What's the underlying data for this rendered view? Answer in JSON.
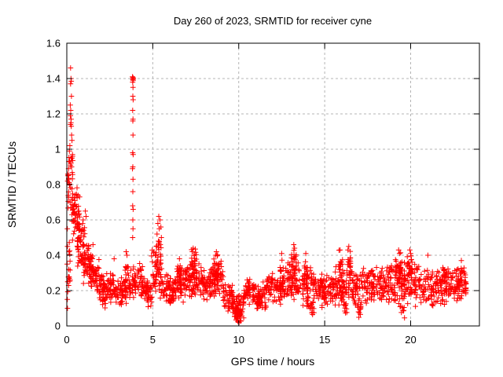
{
  "chart_data": {
    "type": "scatter",
    "title": "Day 260 of 2023, SRMTID for receiver cyne",
    "xlabel": "GPS time / hours",
    "ylabel": "SRMTID / TECUs",
    "xlim": [
      0,
      24
    ],
    "ylim": [
      0,
      1.6
    ],
    "xticks": [
      0,
      5,
      10,
      15,
      20
    ],
    "yticks": [
      0,
      0.2,
      0.4,
      0.6,
      0.8,
      1,
      1.2,
      1.4,
      1.6
    ],
    "grid": true,
    "legend": null,
    "marker_shape": "plus",
    "marker_color": "#ff0000",
    "grid_color": "#b4b4b4",
    "axis_color": "#000000",
    "background_color": "#ffffff",
    "series_count": 1,
    "x_data_end": 23.25,
    "feature_points": [
      [
        0.22,
        1.46
      ],
      [
        0.24,
        1.4
      ],
      [
        0.26,
        1.385
      ],
      [
        0.22,
        1.37
      ],
      [
        0.27,
        1.3
      ],
      [
        0.2,
        1.25
      ],
      [
        0.23,
        1.22
      ],
      [
        0.21,
        1.19
      ],
      [
        0.25,
        1.17
      ],
      [
        0.24,
        1.15
      ],
      [
        0.22,
        1.14
      ],
      [
        0.26,
        1.13
      ],
      [
        0.28,
        1.08
      ],
      [
        0.3,
        1.05
      ],
      [
        0.18,
        1.02
      ],
      [
        0.15,
        0.99
      ],
      [
        0.33,
        0.97
      ],
      [
        0.3,
        0.95
      ],
      [
        0.12,
        0.93
      ],
      [
        0.22,
        0.91
      ],
      [
        0.28,
        0.9
      ],
      [
        0.1,
        0.89
      ],
      [
        0.07,
        0.85
      ],
      [
        0.1,
        0.83
      ],
      [
        0.05,
        0.82
      ],
      [
        3.82,
        1.41
      ],
      [
        3.85,
        1.405
      ],
      [
        3.87,
        1.4
      ],
      [
        3.84,
        1.395
      ],
      [
        3.86,
        1.39
      ],
      [
        3.83,
        1.38
      ],
      [
        3.85,
        1.35
      ],
      [
        3.84,
        1.3
      ],
      [
        3.86,
        1.28
      ],
      [
        3.83,
        1.22
      ],
      [
        3.85,
        1.17
      ],
      [
        3.84,
        1.16
      ],
      [
        3.85,
        1.08
      ],
      [
        3.83,
        0.98
      ],
      [
        3.86,
        0.97
      ],
      [
        3.84,
        0.9
      ],
      [
        3.82,
        0.89
      ],
      [
        3.85,
        0.83
      ],
      [
        3.84,
        0.76
      ],
      [
        3.83,
        0.68
      ],
      [
        3.86,
        0.66
      ],
      [
        3.84,
        0.6
      ],
      [
        3.85,
        0.55
      ],
      [
        3.83,
        0.5
      ],
      [
        5.35,
        0.62
      ],
      [
        5.42,
        0.6
      ],
      [
        5.3,
        0.58
      ],
      [
        5.47,
        0.56
      ],
      [
        5.38,
        0.55
      ],
      [
        5.25,
        0.52
      ],
      [
        5.5,
        0.5
      ],
      [
        5.33,
        0.48
      ],
      [
        5.44,
        0.46
      ],
      [
        5.21,
        0.45
      ],
      [
        1.08,
        0.65
      ],
      [
        1.12,
        0.62
      ],
      [
        1.52,
        0.46
      ],
      [
        0.95,
        0.6
      ],
      [
        2.75,
        0.38
      ],
      [
        3.45,
        0.42
      ],
      [
        3.5,
        0.4
      ],
      [
        6.55,
        0.38
      ],
      [
        7.35,
        0.44
      ],
      [
        7.3,
        0.42
      ],
      [
        8.7,
        0.42
      ],
      [
        8.65,
        0.4
      ],
      [
        12.5,
        0.41
      ],
      [
        13.2,
        0.46
      ],
      [
        13.25,
        0.44
      ],
      [
        13.9,
        0.41
      ],
      [
        15.9,
        0.43
      ],
      [
        16.4,
        0.45
      ],
      [
        16.35,
        0.43
      ],
      [
        19.3,
        0.43
      ],
      [
        19.35,
        0.41
      ],
      [
        19.95,
        0.43
      ],
      [
        20.0,
        0.41
      ],
      [
        21.0,
        0.4
      ],
      [
        9.95,
        0.025
      ],
      [
        10.02,
        0.02
      ],
      [
        10.08,
        0.03
      ],
      [
        9.88,
        0.04
      ],
      [
        23.1,
        0.3
      ],
      [
        23.2,
        0.25
      ],
      [
        23.15,
        0.2
      ],
      [
        0.03,
        0.55
      ],
      [
        0.04,
        0.45
      ],
      [
        0.02,
        0.35
      ],
      [
        0.05,
        0.25
      ],
      [
        0.03,
        0.15
      ],
      [
        0.04,
        0.1
      ]
    ],
    "density_bands_fields": [
      "x_start",
      "x_end",
      "y_min",
      "y_max",
      "count"
    ],
    "density_bands": [
      [
        0.05,
        0.35,
        0.6,
        1.0,
        30
      ],
      [
        0.05,
        0.2,
        0.1,
        0.6,
        15
      ],
      [
        0.3,
        0.75,
        0.45,
        0.8,
        55
      ],
      [
        0.6,
        1.05,
        0.3,
        0.62,
        55
      ],
      [
        0.95,
        1.45,
        0.22,
        0.5,
        50
      ],
      [
        1.4,
        1.9,
        0.16,
        0.4,
        50
      ],
      [
        1.9,
        2.6,
        0.12,
        0.32,
        60
      ],
      [
        2.05,
        2.25,
        0.1,
        0.18,
        10
      ],
      [
        2.6,
        3.3,
        0.1,
        0.3,
        60
      ],
      [
        3.3,
        3.8,
        0.12,
        0.36,
        45
      ],
      [
        3.8,
        4.4,
        0.12,
        0.38,
        55
      ],
      [
        4.4,
        4.95,
        0.1,
        0.3,
        50
      ],
      [
        4.9,
        5.5,
        0.25,
        0.5,
        35
      ],
      [
        5.0,
        5.6,
        0.15,
        0.35,
        35
      ],
      [
        5.6,
        6.3,
        0.12,
        0.3,
        55
      ],
      [
        5.9,
        6.15,
        0.1,
        0.2,
        12
      ],
      [
        6.3,
        7.1,
        0.13,
        0.35,
        65
      ],
      [
        6.4,
        6.7,
        0.2,
        0.36,
        18
      ],
      [
        7.1,
        7.7,
        0.15,
        0.38,
        55
      ],
      [
        7.2,
        7.55,
        0.25,
        0.45,
        25
      ],
      [
        7.7,
        8.4,
        0.14,
        0.34,
        60
      ],
      [
        8.4,
        9.1,
        0.15,
        0.38,
        58
      ],
      [
        8.55,
        8.9,
        0.22,
        0.42,
        22
      ],
      [
        9.1,
        9.65,
        0.08,
        0.26,
        42
      ],
      [
        9.65,
        10.3,
        0.03,
        0.2,
        55
      ],
      [
        9.75,
        10.2,
        0.02,
        0.12,
        40
      ],
      [
        10.3,
        11.0,
        0.1,
        0.3,
        58
      ],
      [
        11.0,
        11.6,
        0.08,
        0.26,
        45
      ],
      [
        11.1,
        11.35,
        0.07,
        0.18,
        12
      ],
      [
        11.6,
        12.6,
        0.11,
        0.33,
        80
      ],
      [
        12.4,
        12.6,
        0.2,
        0.4,
        12
      ],
      [
        12.6,
        13.6,
        0.13,
        0.38,
        82
      ],
      [
        13.05,
        13.35,
        0.25,
        0.46,
        20
      ],
      [
        13.6,
        14.45,
        0.1,
        0.35,
        65
      ],
      [
        13.8,
        14.0,
        0.2,
        0.41,
        14
      ],
      [
        14.15,
        14.4,
        0.05,
        0.15,
        12
      ],
      [
        14.45,
        15.6,
        0.1,
        0.32,
        90
      ],
      [
        15.6,
        16.6,
        0.1,
        0.36,
        78
      ],
      [
        15.8,
        16.05,
        0.22,
        0.43,
        18
      ],
      [
        16.1,
        16.3,
        0.05,
        0.15,
        10
      ],
      [
        16.3,
        16.5,
        0.25,
        0.45,
        14
      ],
      [
        16.6,
        17.6,
        0.08,
        0.33,
        72
      ],
      [
        16.85,
        17.15,
        0.04,
        0.15,
        12
      ],
      [
        17.6,
        18.6,
        0.11,
        0.36,
        75
      ],
      [
        18.6,
        19.6,
        0.1,
        0.38,
        76
      ],
      [
        19.1,
        19.5,
        0.22,
        0.43,
        25
      ],
      [
        19.45,
        19.65,
        0.04,
        0.12,
        8
      ],
      [
        19.6,
        20.6,
        0.1,
        0.38,
        78
      ],
      [
        19.8,
        20.1,
        0.22,
        0.43,
        22
      ],
      [
        20.6,
        21.6,
        0.1,
        0.34,
        74
      ],
      [
        21.6,
        22.6,
        0.11,
        0.34,
        74
      ],
      [
        21.8,
        22.1,
        0.2,
        0.37,
        15
      ],
      [
        22.6,
        23.25,
        0.13,
        0.35,
        50
      ],
      [
        22.7,
        23.0,
        0.2,
        0.38,
        15
      ]
    ]
  }
}
